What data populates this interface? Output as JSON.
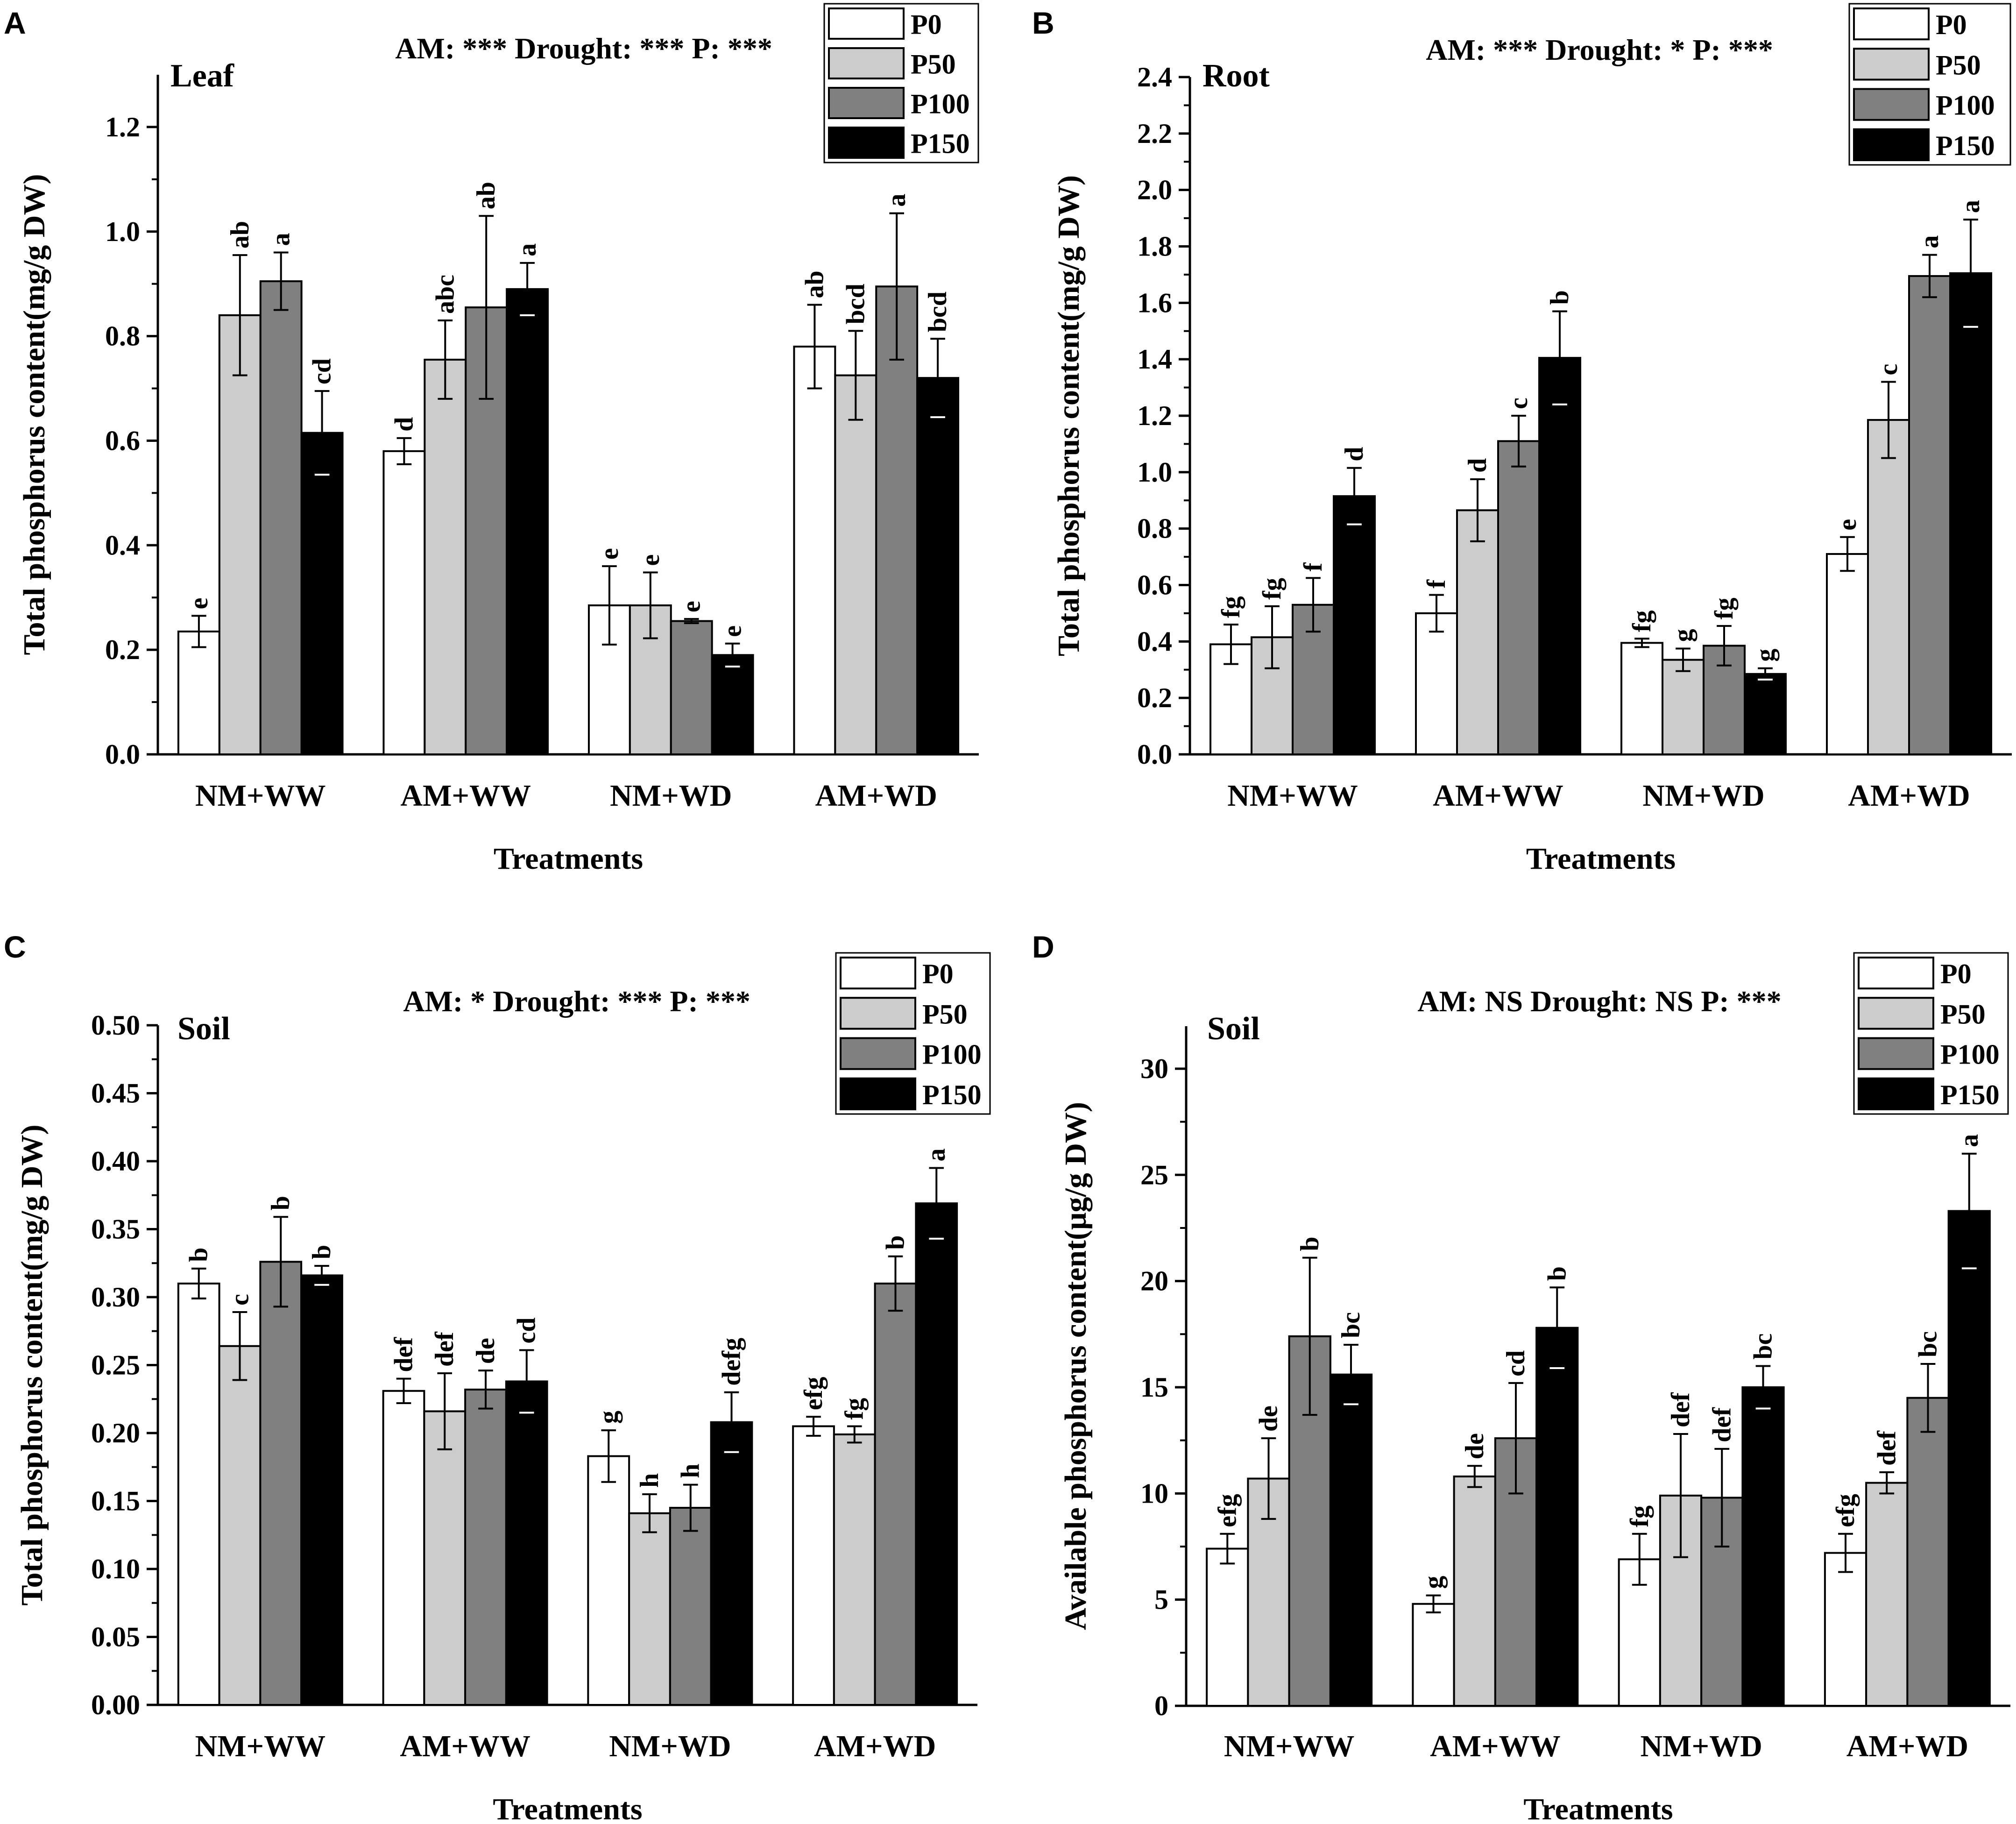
{
  "legend": {
    "series": [
      {
        "name": "P0",
        "color": "#ffffff"
      },
      {
        "name": "P50",
        "color": "#cccccc"
      },
      {
        "name": "P100",
        "color": "#808080"
      },
      {
        "name": "P150",
        "color": "#000000"
      }
    ]
  },
  "chart_data": [
    {
      "panel_label": "A",
      "type": "bar",
      "title": "Leaf",
      "stats": "AM: ***   Drought: ***   P: ***",
      "xlabel": "Treatments",
      "ylabel": "Total phosphorus content(mg/g DW)",
      "categories": [
        "NM+WW",
        "AM+WW",
        "NM+WD",
        "AM+WD"
      ],
      "ylim": [
        0,
        1.3
      ],
      "yticks": [
        "0.0",
        "0.2",
        "0.4",
        "0.6",
        "0.8",
        "1.0",
        "1.2"
      ],
      "series": [
        {
          "name": "P0",
          "values": [
            0.235,
            0.58,
            0.285,
            0.78
          ],
          "errors": [
            0.03,
            0.025,
            0.075,
            0.08
          ],
          "letters": [
            "e",
            "d",
            "e",
            "ab"
          ]
        },
        {
          "name": "P50",
          "values": [
            0.84,
            0.755,
            0.285,
            0.725
          ],
          "errors": [
            0.115,
            0.075,
            0.063,
            0.085
          ],
          "letters": [
            "ab",
            "abc",
            "e",
            "bcd"
          ]
        },
        {
          "name": "P100",
          "values": [
            0.905,
            0.855,
            0.255,
            0.895
          ],
          "errors": [
            0.055,
            0.175,
            0.004,
            0.14
          ],
          "letters": [
            "a",
            "ab",
            "e",
            "a"
          ]
        },
        {
          "name": "P150",
          "values": [
            0.615,
            0.89,
            0.19,
            0.72
          ],
          "errors": [
            0.08,
            0.05,
            0.022,
            0.075
          ],
          "letters": [
            "cd",
            "a",
            "e",
            "bcd"
          ]
        }
      ]
    },
    {
      "panel_label": "B",
      "type": "bar",
      "title": "Root",
      "stats": "AM: ***   Drought: *   P: ***",
      "xlabel": "Treatments",
      "ylabel": "Total phosphorus content(mg/g DW)",
      "categories": [
        "NM+WW",
        "AM+WW",
        "NM+WD",
        "AM+WD"
      ],
      "ylim": [
        0,
        2.4
      ],
      "yticks": [
        "0.0",
        "0.2",
        "0.4",
        "0.6",
        "0.8",
        "1.0",
        "1.2",
        "1.4",
        "1.6",
        "1.8",
        "2.0",
        "2.2",
        "2.4"
      ],
      "series": [
        {
          "name": "P0",
          "values": [
            0.39,
            0.5,
            0.395,
            0.71
          ],
          "errors": [
            0.07,
            0.065,
            0.015,
            0.06
          ],
          "letters": [
            "fg",
            "f",
            "fg",
            "e"
          ]
        },
        {
          "name": "P50",
          "values": [
            0.415,
            0.865,
            0.335,
            1.185
          ],
          "errors": [
            0.11,
            0.11,
            0.04,
            0.135
          ],
          "letters": [
            "fg",
            "d",
            "g",
            "c"
          ]
        },
        {
          "name": "P100",
          "values": [
            0.53,
            1.11,
            0.385,
            1.695
          ],
          "errors": [
            0.095,
            0.09,
            0.07,
            0.075
          ],
          "letters": [
            "f",
            "c",
            "fg",
            "a"
          ]
        },
        {
          "name": "P150",
          "values": [
            0.915,
            1.405,
            0.285,
            1.705
          ],
          "errors": [
            0.1,
            0.165,
            0.02,
            0.19
          ],
          "letters": [
            "d",
            "b",
            "g",
            "a"
          ]
        }
      ]
    },
    {
      "panel_label": "C",
      "type": "bar",
      "title": "Soil",
      "stats": "AM: *   Drought: ***   P: ***",
      "xlabel": "Treatments",
      "ylabel": "Total phosphorus content(mg/g DW)",
      "categories": [
        "NM+WW",
        "AM+WW",
        "NM+WD",
        "AM+WD"
      ],
      "ylim": [
        0,
        0.5
      ],
      "yticks": [
        "0.00",
        "0.05",
        "0.10",
        "0.15",
        "0.20",
        "0.25",
        "0.30",
        "0.35",
        "0.40",
        "0.45",
        "0.50"
      ],
      "series": [
        {
          "name": "P0",
          "values": [
            0.31,
            0.231,
            0.183,
            0.205
          ],
          "errors": [
            0.011,
            0.009,
            0.019,
            0.007
          ],
          "letters": [
            "b",
            "def",
            "g",
            "efg"
          ]
        },
        {
          "name": "P50",
          "values": [
            0.264,
            0.216,
            0.141,
            0.199
          ],
          "errors": [
            0.025,
            0.028,
            0.014,
            0.006
          ],
          "letters": [
            "c",
            "def",
            "h",
            "fg"
          ]
        },
        {
          "name": "P100",
          "values": [
            0.326,
            0.232,
            0.145,
            0.31
          ],
          "errors": [
            0.033,
            0.014,
            0.017,
            0.02
          ],
          "letters": [
            "b",
            "de",
            "h",
            "b"
          ]
        },
        {
          "name": "P150",
          "values": [
            0.316,
            0.238,
            0.208,
            0.369
          ],
          "errors": [
            0.007,
            0.023,
            0.022,
            0.026
          ],
          "letters": [
            "b",
            "cd",
            "defg",
            "a"
          ]
        }
      ]
    },
    {
      "panel_label": "D",
      "type": "bar",
      "title": "Soil",
      "stats": "AM: NS   Drought: NS   P: ***",
      "xlabel": "Treatments",
      "ylabel": "Available phosphorus content(μg/g DW)",
      "categories": [
        "NM+WW",
        "AM+WW",
        "NM+WD",
        "AM+WD"
      ],
      "ylim": [
        0,
        32
      ],
      "yticks": [
        "0",
        "5",
        "10",
        "15",
        "20",
        "25",
        "30"
      ],
      "series": [
        {
          "name": "P0",
          "values": [
            7.4,
            4.8,
            6.9,
            7.2
          ],
          "errors": [
            0.7,
            0.4,
            1.2,
            0.9
          ],
          "letters": [
            "efg",
            "g",
            "fg",
            "efg"
          ]
        },
        {
          "name": "P50",
          "values": [
            10.7,
            10.8,
            9.9,
            10.5
          ],
          "errors": [
            1.9,
            0.5,
            2.9,
            0.5
          ],
          "letters": [
            "de",
            "de",
            "def",
            "def"
          ]
        },
        {
          "name": "P100",
          "values": [
            17.4,
            12.6,
            9.8,
            14.5
          ],
          "errors": [
            3.7,
            2.6,
            2.3,
            1.6
          ],
          "letters": [
            "b",
            "cd",
            "def",
            "bc"
          ]
        },
        {
          "name": "P150",
          "values": [
            15.6,
            17.8,
            15.0,
            23.3
          ],
          "errors": [
            1.4,
            1.9,
            1.0,
            2.7
          ],
          "letters": [
            "bc",
            "b",
            "bc",
            "a"
          ]
        }
      ]
    }
  ]
}
